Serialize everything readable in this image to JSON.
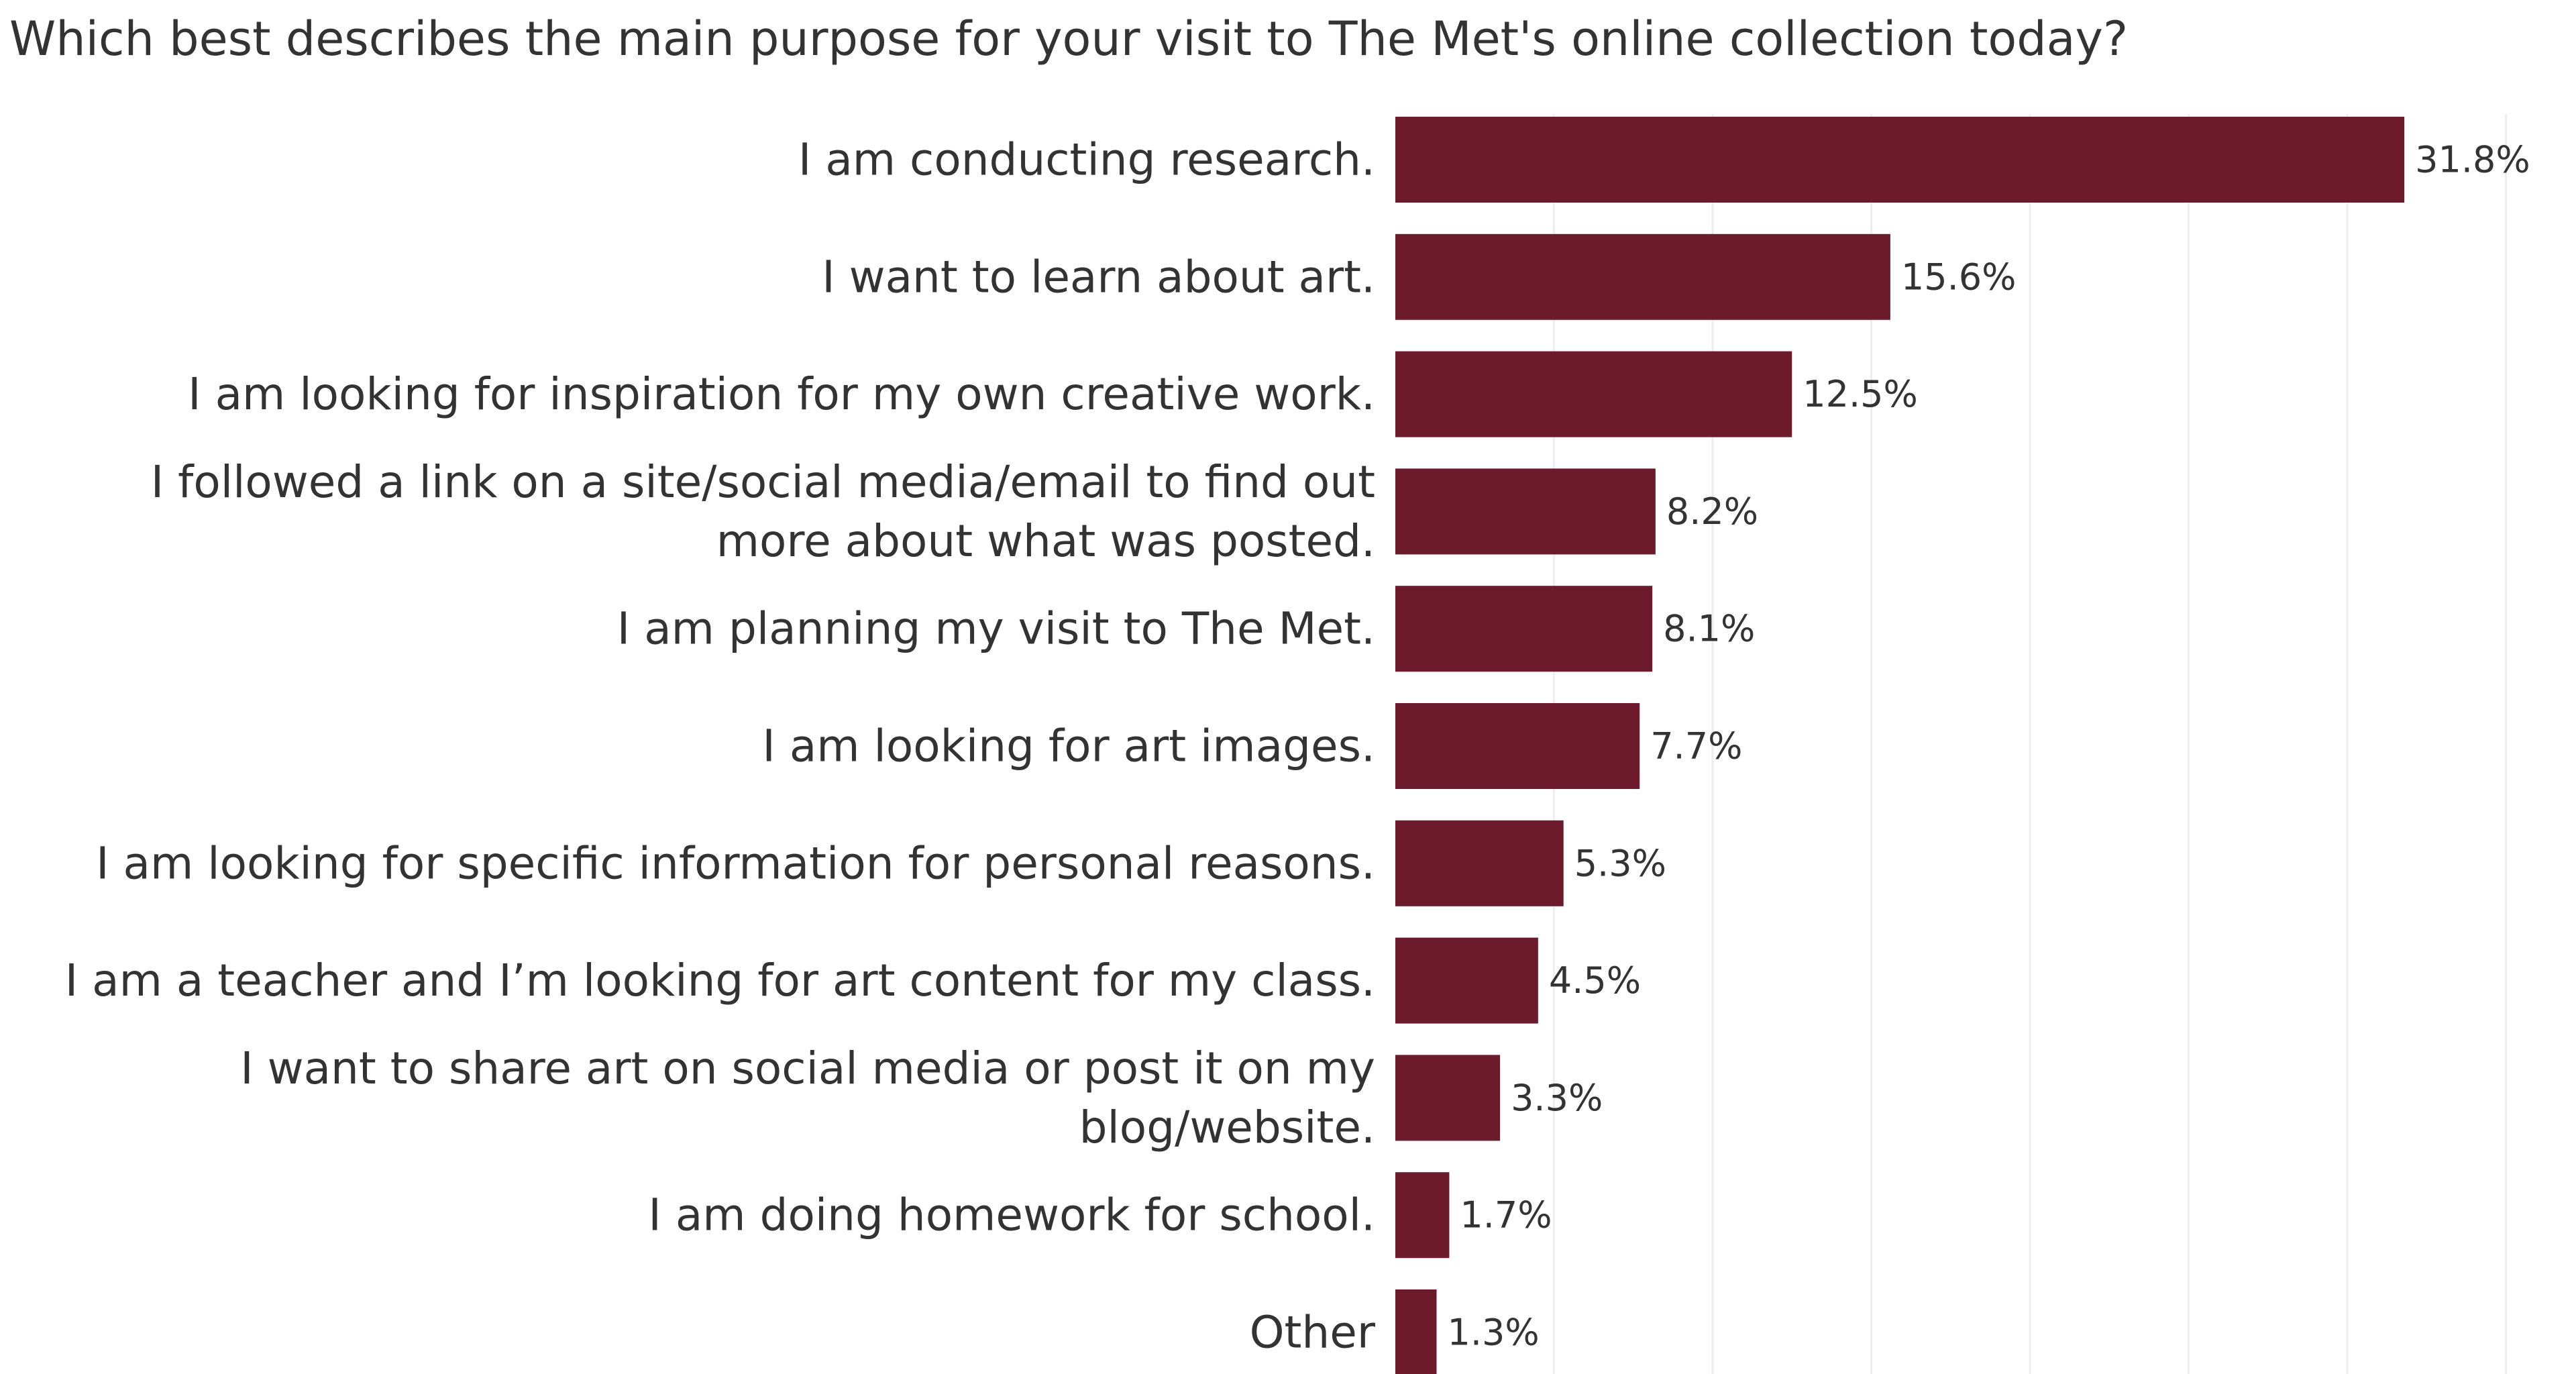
{
  "chart_data": {
    "type": "bar",
    "orientation": "horizontal",
    "title": "Which best describes the main purpose for your visit to The Met's online collection today?",
    "categories": [
      [
        "I am conducting research."
      ],
      [
        "I want to learn about art."
      ],
      [
        "I am looking for inspiration for my own creative work."
      ],
      [
        "I followed a link on a site/social media/email to find out",
        "more about what was posted."
      ],
      [
        "I am planning my visit to The Met."
      ],
      [
        "I am looking for art images."
      ],
      [
        "I am looking for specific information for personal reasons."
      ],
      [
        "I am a teacher and I’m looking for art content for my class."
      ],
      [
        "I want to share art on social media or post it on my",
        "blog/website."
      ],
      [
        "I am doing homework for school."
      ],
      [
        "Other"
      ]
    ],
    "values": [
      31.8,
      15.6,
      12.5,
      8.2,
      8.1,
      7.7,
      5.3,
      4.5,
      3.3,
      1.7,
      1.3
    ],
    "value_labels": [
      "31.8%",
      "15.6%",
      "12.5%",
      "8.2%",
      "8.1%",
      "7.7%",
      "5.3%",
      "4.5%",
      "3.3%",
      "1.7%",
      "1.3%"
    ],
    "xlim": [
      0,
      35
    ],
    "grid": true,
    "legend": "none",
    "bar_color": "#6d1a2c",
    "grid_color": "#eeeeee"
  }
}
